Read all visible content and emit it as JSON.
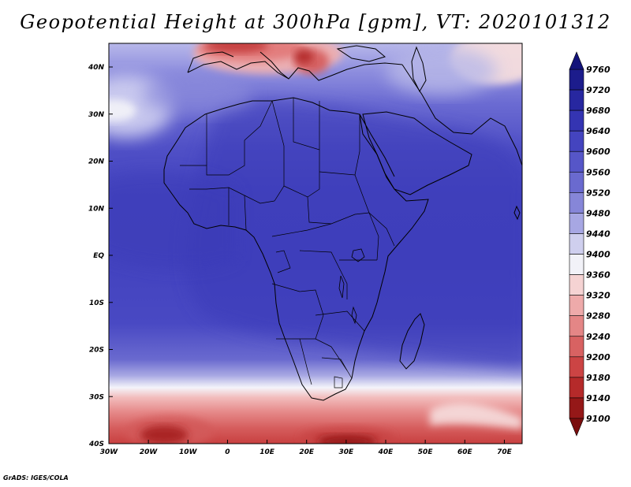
{
  "title": "Geopotential Height at 300hPa [gpm], VT: 2020101312",
  "footer": "GrADS: IGES/COLA",
  "map": {
    "lon_ticks": [
      "30W",
      "20W",
      "10W",
      "0",
      "10E",
      "20E",
      "30E",
      "40E",
      "50E",
      "60E",
      "70E"
    ],
    "lat_ticks": [
      "40N",
      "30N",
      "20N",
      "10N",
      "EQ",
      "10S",
      "20S",
      "30S",
      "40S"
    ]
  },
  "colorbar": {
    "levels": [
      "9760",
      "9720",
      "9680",
      "9640",
      "9600",
      "9560",
      "9520",
      "9480",
      "9440",
      "9400",
      "9360",
      "9320",
      "9280",
      "9240",
      "9200",
      "9180",
      "9140",
      "9100"
    ],
    "colors": [
      "#13137a",
      "#1c1c8c",
      "#2727a0",
      "#3434b2",
      "#4444bf",
      "#5656c8",
      "#6a6acf",
      "#8686d8",
      "#a7a7e3",
      "#cfcfee",
      "#f2f2f8",
      "#f5d3d3",
      "#eeaaaa",
      "#e48686",
      "#d86262",
      "#cc4444",
      "#b52a2a",
      "#951818",
      "#7a0e0e"
    ]
  }
}
